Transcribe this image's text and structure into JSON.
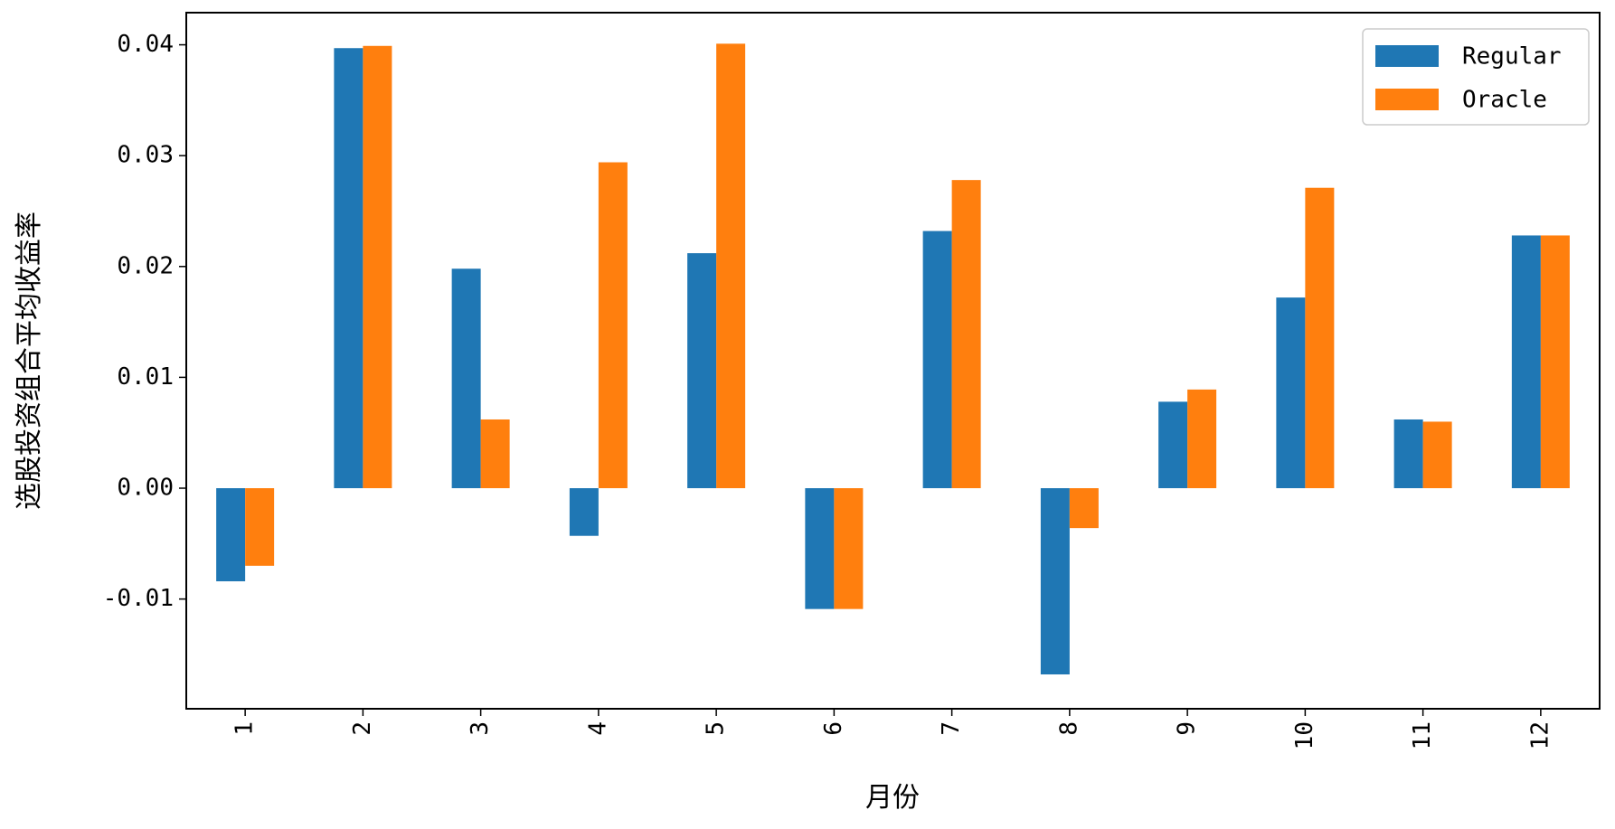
{
  "chart_data": {
    "type": "bar",
    "x_label": "月份",
    "y_label": "选股投资组合平均收益率",
    "categories": [
      "1",
      "2",
      "3",
      "4",
      "5",
      "6",
      "7",
      "8",
      "9",
      "10",
      "11",
      "12"
    ],
    "series": [
      {
        "name": "Regular",
        "color": "#1f77b4",
        "values": [
          -0.0084,
          0.0397,
          0.0198,
          -0.0043,
          0.0212,
          -0.0109,
          0.0232,
          -0.0168,
          0.0078,
          0.0172,
          0.0062,
          0.0228
        ]
      },
      {
        "name": "Oracle",
        "color": "#ff7f0e",
        "values": [
          -0.007,
          0.0399,
          0.0062,
          0.0294,
          0.0401,
          -0.0109,
          0.0278,
          -0.0036,
          0.0089,
          0.0271,
          0.006,
          0.0228
        ]
      }
    ],
    "ylim": [
      -0.0199,
      0.0429
    ],
    "yticks": [
      -0.01,
      {
        "value": 0,
        "label": "0.00"
      },
      0.01,
      0.02,
      0.03,
      0.04
    ],
    "legend": "upper right"
  }
}
